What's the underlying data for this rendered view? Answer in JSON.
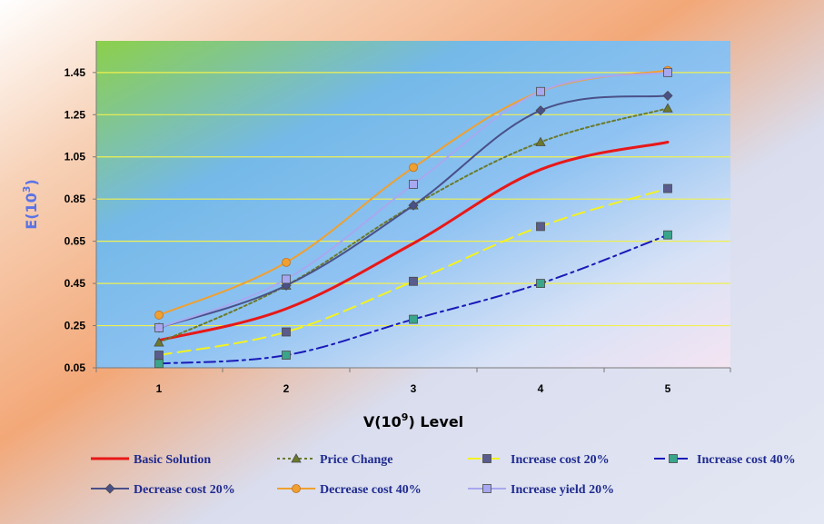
{
  "colors": {
    "axis_title": "#5b73e6",
    "legend_text": "#1f2a8f",
    "gridline": "#f0f050"
  },
  "chart_data": {
    "type": "line",
    "title": "",
    "xlabel": "V(10^9) Level",
    "xlabel_main": "V(10",
    "xlabel_sup": "9",
    "xlabel_end": ")  Level",
    "ylabel": "E(10^3)",
    "ylabel_main": "E(10",
    "ylabel_sup": "3",
    "ylabel_end": ")",
    "categories": [
      "1",
      "2",
      "3",
      "4",
      "5"
    ],
    "x": [
      1,
      2,
      3,
      4,
      5
    ],
    "ylim": [
      0.05,
      1.6
    ],
    "yticks": [
      "0.05",
      "0.25",
      "0.45",
      "0.65",
      "0.85",
      "1.05",
      "1.25",
      "1.45"
    ],
    "grid": "horizontal",
    "legend_position": "bottom",
    "series": [
      {
        "name": "Basic Solution",
        "values": [
          0.18,
          0.33,
          0.64,
          0.99,
          1.12
        ],
        "color": "#e81818",
        "style": "solid",
        "marker": "none"
      },
      {
        "name": "Price Change",
        "values": [
          0.17,
          0.44,
          0.82,
          1.12,
          1.28
        ],
        "color": "#6b7a2a",
        "style": "dotted",
        "marker": "triangle"
      },
      {
        "name": "Increase cost 20%",
        "values": [
          0.11,
          0.22,
          0.46,
          0.72,
          0.9
        ],
        "color": "#f2f222",
        "style": "dashed",
        "marker": "square",
        "marker_color": "#5a5c8c"
      },
      {
        "name": "Increase cost 40%",
        "values": [
          0.07,
          0.11,
          0.28,
          0.45,
          0.68
        ],
        "color": "#1a1ab8",
        "style": "dashdot",
        "marker": "square",
        "marker_color": "#3aa58a"
      },
      {
        "name": "Decrease cost 20%",
        "values": [
          0.24,
          0.44,
          0.82,
          1.27,
          1.34
        ],
        "color": "#4a5088",
        "style": "solid",
        "marker": "diamond"
      },
      {
        "name": "Decrease cost 40%",
        "values": [
          0.3,
          0.55,
          1.0,
          1.36,
          1.46
        ],
        "color": "#f0a030",
        "style": "solid",
        "marker": "circle"
      },
      {
        "name": "Increase yield 20%",
        "values": [
          0.24,
          0.47,
          0.92,
          1.36,
          1.45
        ],
        "color": "#a8a8f0",
        "style": "solid",
        "marker": "square"
      }
    ]
  }
}
